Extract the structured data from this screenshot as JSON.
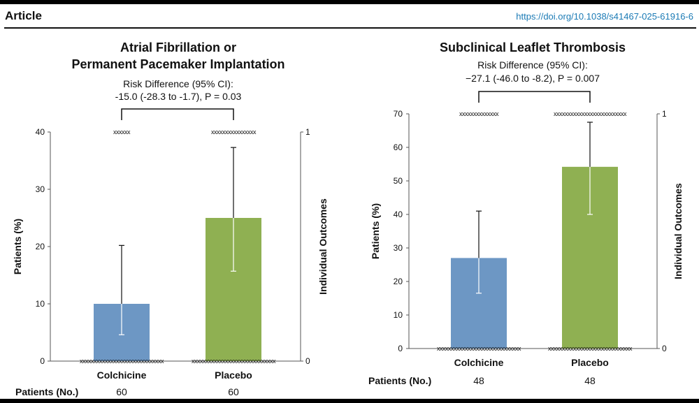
{
  "header": {
    "article_label": "Article",
    "doi": "https://doi.org/10.1038/s41467-025-61916-6"
  },
  "colors": {
    "colchicine": "#6d97c4",
    "placebo": "#8fb052",
    "text": "#111111",
    "axis": "#555555",
    "error_bar": "#ffffff",
    "doi_link": "#1a7ab5"
  },
  "chart_data": [
    {
      "type": "bar",
      "title": "Atrial Fibrillation or Permanent Pacemaker Implantation",
      "title_lines": [
        "Atrial Fibrillation or",
        "Permanent Pacemaker Implantation"
      ],
      "annotation_lines": [
        "Risk Difference (95% CI):",
        "-15.0 (-28.3 to -1.7), P = 0.03"
      ],
      "categories": [
        "Colchicine",
        "Placebo"
      ],
      "values": [
        10,
        25
      ],
      "ci_low": [
        4.6,
        15.7
      ],
      "ci_high": [
        20.2,
        37.3
      ],
      "ylabel": "Patients (%)",
      "y2label": "Individual Outcomes",
      "ylim": [
        0,
        40
      ],
      "yticks": [
        "0",
        "10",
        "20",
        "30",
        "40"
      ],
      "y2ticks": [
        "0",
        "1"
      ],
      "patients_label": "Patients (No.)",
      "patients": [
        "60",
        "60"
      ],
      "outcome_markers": [
        {
          "category": "Colchicine",
          "events": "xxxxxx",
          "no_events": "xxxxxxxxxxxxxxxxxxxxxxxxxxxxxx"
        },
        {
          "category": "Placebo",
          "events": "xxxxxxxxxxxxxxxx",
          "no_events": "xxxxxxxxxxxxxxxxxxxxxxxxxxxxxx"
        }
      ]
    },
    {
      "type": "bar",
      "title": "Subclinical Leaflet Thrombosis",
      "title_lines": [
        "Subclinical Leaflet Thrombosis"
      ],
      "annotation_lines": [
        "Risk Difference (95% CI):",
        "−27.1 (-46.0 to -8.2), P = 0.007"
      ],
      "categories": [
        "Colchicine",
        "Placebo"
      ],
      "values": [
        27,
        54.2
      ],
      "ci_low": [
        16.5,
        40
      ],
      "ci_high": [
        41,
        67.5
      ],
      "ylabel": "Patients (%)",
      "y2label": "Individual Outcomes",
      "ylim": [
        0,
        70
      ],
      "yticks": [
        "0",
        "10",
        "20",
        "30",
        "40",
        "50",
        "60",
        "70"
      ],
      "y2ticks": [
        "0",
        "1"
      ],
      "patients_label": "Patients (No.)",
      "patients": [
        "48",
        "48"
      ],
      "outcome_markers": [
        {
          "category": "Colchicine",
          "events": "xxxxxxxxxxxxxx",
          "no_events": "xxxxxxxxxxxxxxxxxxxxxxxxxxxxxx"
        },
        {
          "category": "Placebo",
          "events": "xxxxxxxxxxxxxxxxxxxxxxxxxx",
          "no_events": "xxxxxxxxxxxxxxxxxxxxxxxxxxxxxx"
        }
      ]
    }
  ]
}
